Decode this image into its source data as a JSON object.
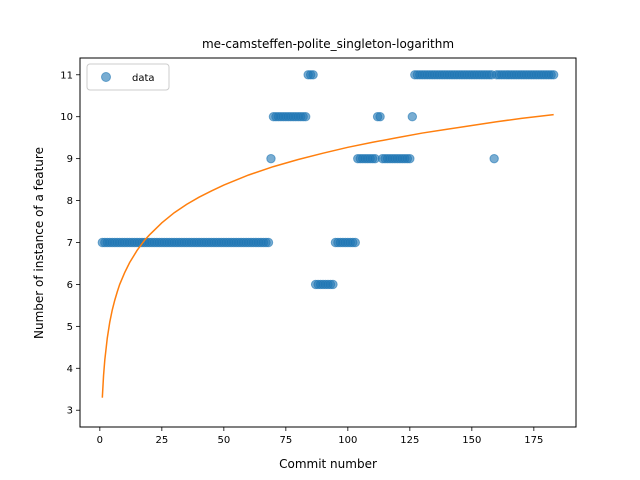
{
  "chart_data": {
    "type": "scatter",
    "title": "me-camsteffen-polite_singleton-logarithm",
    "xlabel": "Commit number",
    "ylabel": "Number of instance of a feature",
    "xlim": [
      -8,
      192
    ],
    "ylim": [
      2.6,
      11.4
    ],
    "xticks": [
      0,
      25,
      50,
      75,
      100,
      125,
      150,
      175
    ],
    "yticks": [
      3,
      4,
      5,
      6,
      7,
      8,
      9,
      10,
      11
    ],
    "legend": {
      "position": "top-left",
      "entries": [
        "data"
      ]
    },
    "grid": false,
    "colors": {
      "data": "#1f77b4",
      "fit": "#ff7f0e"
    },
    "series": [
      {
        "name": "data",
        "kind": "scatter",
        "points": [
          [
            1,
            7
          ],
          [
            2,
            7
          ],
          [
            3,
            7
          ],
          [
            4,
            7
          ],
          [
            5,
            7
          ],
          [
            6,
            7
          ],
          [
            7,
            7
          ],
          [
            8,
            7
          ],
          [
            9,
            7
          ],
          [
            10,
            7
          ],
          [
            11,
            7
          ],
          [
            12,
            7
          ],
          [
            13,
            7
          ],
          [
            14,
            7
          ],
          [
            15,
            7
          ],
          [
            16,
            7
          ],
          [
            17,
            7
          ],
          [
            18,
            7
          ],
          [
            19,
            7
          ],
          [
            20,
            7
          ],
          [
            21,
            7
          ],
          [
            22,
            7
          ],
          [
            23,
            7
          ],
          [
            24,
            7
          ],
          [
            25,
            7
          ],
          [
            26,
            7
          ],
          [
            27,
            7
          ],
          [
            28,
            7
          ],
          [
            29,
            7
          ],
          [
            30,
            7
          ],
          [
            31,
            7
          ],
          [
            32,
            7
          ],
          [
            33,
            7
          ],
          [
            34,
            7
          ],
          [
            35,
            7
          ],
          [
            36,
            7
          ],
          [
            37,
            7
          ],
          [
            38,
            7
          ],
          [
            39,
            7
          ],
          [
            40,
            7
          ],
          [
            41,
            7
          ],
          [
            42,
            7
          ],
          [
            43,
            7
          ],
          [
            44,
            7
          ],
          [
            45,
            7
          ],
          [
            46,
            7
          ],
          [
            47,
            7
          ],
          [
            48,
            7
          ],
          [
            49,
            7
          ],
          [
            50,
            7
          ],
          [
            51,
            7
          ],
          [
            52,
            7
          ],
          [
            53,
            7
          ],
          [
            54,
            7
          ],
          [
            55,
            7
          ],
          [
            56,
            7
          ],
          [
            57,
            7
          ],
          [
            58,
            7
          ],
          [
            59,
            7
          ],
          [
            60,
            7
          ],
          [
            61,
            7
          ],
          [
            62,
            7
          ],
          [
            63,
            7
          ],
          [
            64,
            7
          ],
          [
            65,
            7
          ],
          [
            66,
            7
          ],
          [
            67,
            7
          ],
          [
            68,
            7
          ],
          [
            69,
            9
          ],
          [
            70,
            10
          ],
          [
            71,
            10
          ],
          [
            72,
            10
          ],
          [
            73,
            10
          ],
          [
            74,
            10
          ],
          [
            75,
            10
          ],
          [
            76,
            10
          ],
          [
            77,
            10
          ],
          [
            78,
            10
          ],
          [
            79,
            10
          ],
          [
            80,
            10
          ],
          [
            81,
            10
          ],
          [
            82,
            10
          ],
          [
            83,
            10
          ],
          [
            84,
            11
          ],
          [
            85,
            11
          ],
          [
            86,
            11
          ],
          [
            87,
            6
          ],
          [
            88,
            6
          ],
          [
            89,
            6
          ],
          [
            90,
            6
          ],
          [
            91,
            6
          ],
          [
            92,
            6
          ],
          [
            93,
            6
          ],
          [
            94,
            6
          ],
          [
            95,
            7
          ],
          [
            96,
            7
          ],
          [
            97,
            7
          ],
          [
            98,
            7
          ],
          [
            99,
            7
          ],
          [
            100,
            7
          ],
          [
            101,
            7
          ],
          [
            102,
            7
          ],
          [
            103,
            7
          ],
          [
            104,
            9
          ],
          [
            105,
            9
          ],
          [
            106,
            9
          ],
          [
            107,
            9
          ],
          [
            108,
            9
          ],
          [
            109,
            9
          ],
          [
            110,
            9
          ],
          [
            111,
            9
          ],
          [
            112,
            10
          ],
          [
            113,
            10
          ],
          [
            114,
            9
          ],
          [
            115,
            9
          ],
          [
            116,
            9
          ],
          [
            117,
            9
          ],
          [
            118,
            9
          ],
          [
            119,
            9
          ],
          [
            120,
            9
          ],
          [
            121,
            9
          ],
          [
            122,
            9
          ],
          [
            123,
            9
          ],
          [
            124,
            9
          ],
          [
            125,
            9
          ],
          [
            126,
            10
          ],
          [
            127,
            11
          ],
          [
            128,
            11
          ],
          [
            129,
            11
          ],
          [
            130,
            11
          ],
          [
            131,
            11
          ],
          [
            132,
            11
          ],
          [
            133,
            11
          ],
          [
            134,
            11
          ],
          [
            135,
            11
          ],
          [
            136,
            11
          ],
          [
            137,
            11
          ],
          [
            138,
            11
          ],
          [
            139,
            11
          ],
          [
            140,
            11
          ],
          [
            141,
            11
          ],
          [
            142,
            11
          ],
          [
            143,
            11
          ],
          [
            144,
            11
          ],
          [
            145,
            11
          ],
          [
            146,
            11
          ],
          [
            147,
            11
          ],
          [
            148,
            11
          ],
          [
            149,
            11
          ],
          [
            150,
            11
          ],
          [
            151,
            11
          ],
          [
            152,
            11
          ],
          [
            153,
            11
          ],
          [
            154,
            11
          ],
          [
            155,
            11
          ],
          [
            156,
            11
          ],
          [
            157,
            11
          ],
          [
            158,
            11
          ],
          [
            159,
            9
          ],
          [
            160,
            11
          ],
          [
            161,
            11
          ],
          [
            162,
            11
          ],
          [
            163,
            11
          ],
          [
            164,
            11
          ],
          [
            165,
            11
          ],
          [
            166,
            11
          ],
          [
            167,
            11
          ],
          [
            168,
            11
          ],
          [
            169,
            11
          ],
          [
            170,
            11
          ],
          [
            171,
            11
          ],
          [
            172,
            11
          ],
          [
            173,
            11
          ],
          [
            174,
            11
          ],
          [
            175,
            11
          ],
          [
            176,
            11
          ],
          [
            177,
            11
          ],
          [
            178,
            11
          ],
          [
            179,
            11
          ],
          [
            180,
            11
          ],
          [
            181,
            11
          ],
          [
            182,
            11
          ],
          [
            183,
            11
          ]
        ]
      },
      {
        "kind": "line",
        "equation": "y = 3.3 + 1.296 * ln(x)",
        "points": [
          [
            1,
            3.3
          ],
          [
            1.5,
            3.83
          ],
          [
            2,
            4.2
          ],
          [
            3,
            4.72
          ],
          [
            4,
            5.1
          ],
          [
            5,
            5.39
          ],
          [
            6,
            5.62
          ],
          [
            7,
            5.82
          ],
          [
            8,
            6.0
          ],
          [
            10,
            6.28
          ],
          [
            12,
            6.52
          ],
          [
            15,
            6.81
          ],
          [
            18,
            7.05
          ],
          [
            20,
            7.18
          ],
          [
            25,
            7.47
          ],
          [
            30,
            7.71
          ],
          [
            35,
            7.91
          ],
          [
            40,
            8.08
          ],
          [
            45,
            8.23
          ],
          [
            50,
            8.37
          ],
          [
            60,
            8.61
          ],
          [
            70,
            8.81
          ],
          [
            80,
            8.98
          ],
          [
            90,
            9.13
          ],
          [
            100,
            9.27
          ],
          [
            110,
            9.39
          ],
          [
            120,
            9.5
          ],
          [
            130,
            9.61
          ],
          [
            140,
            9.7
          ],
          [
            150,
            9.79
          ],
          [
            160,
            9.88
          ],
          [
            170,
            9.96
          ],
          [
            183,
            10.05
          ]
        ]
      }
    ]
  }
}
